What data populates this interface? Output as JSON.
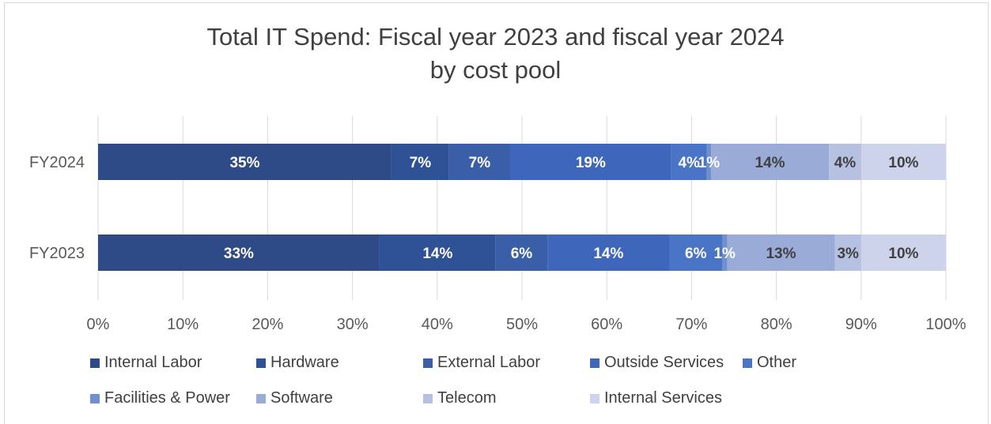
{
  "chart_data": {
    "type": "bar",
    "orientation": "horizontal",
    "stacked": "percent",
    "title": [
      "Total IT Spend: Fiscal year 2023 and fiscal year 2024",
      "by cost pool"
    ],
    "categories": [
      "FY2024",
      "FY2023"
    ],
    "xlim": [
      0,
      100
    ],
    "x_ticks": [
      "0%",
      "10%",
      "20%",
      "30%",
      "40%",
      "50%",
      "60%",
      "70%",
      "80%",
      "90%",
      "100%"
    ],
    "grid": "vertical",
    "legend_position": "bottom",
    "series": [
      {
        "name": "Internal Labor",
        "color": "#2e4b87",
        "values": [
          34.6,
          33.2
        ],
        "labels": [
          "35%",
          "33%"
        ]
      },
      {
        "name": "Hardware",
        "color": "#2f5296",
        "values": [
          6.8,
          13.7
        ],
        "labels": [
          "7%",
          "14%"
        ]
      },
      {
        "name": "External Labor",
        "color": "#3a5ea8",
        "values": [
          7.2,
          6.1
        ],
        "labels": [
          "7%",
          "6%"
        ]
      },
      {
        "name": "Outside Services",
        "color": "#3e67bb",
        "values": [
          19.0,
          14.4
        ],
        "labels": [
          "19%",
          "14%"
        ]
      },
      {
        "name": "Other",
        "color": "#4a74c6",
        "values": [
          4.2,
          6.2
        ],
        "labels": [
          "4%",
          "6%"
        ]
      },
      {
        "name": "Facilities & Power",
        "color": "#6f8fcd",
        "values": [
          0.5,
          0.6
        ],
        "labels": [
          "1%",
          "1%"
        ]
      },
      {
        "name": "Software",
        "color": "#9aabd8",
        "values": [
          13.9,
          12.7
        ],
        "labels": [
          "14%",
          "13%"
        ]
      },
      {
        "name": "Telecom",
        "color": "#b6c1e2",
        "values": [
          3.8,
          3.1
        ],
        "labels": [
          "4%",
          "3%"
        ]
      },
      {
        "name": "Internal Services",
        "color": "#ccd3ea",
        "values": [
          10.0,
          10.0
        ],
        "labels": [
          "10%",
          "10%"
        ]
      }
    ]
  }
}
